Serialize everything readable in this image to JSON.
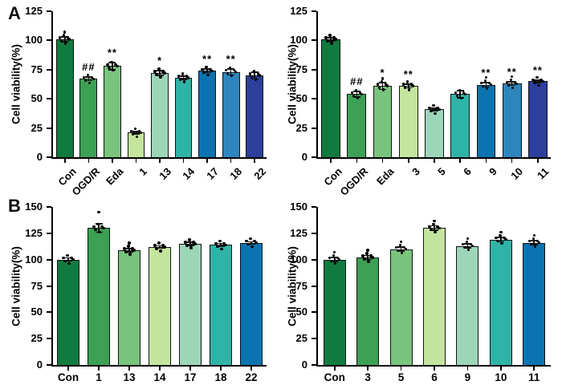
{
  "panels": {
    "a": "A",
    "b": "B"
  },
  "palette": [
    "#117a3e",
    "#3ca055",
    "#79c47d",
    "#c4e59e",
    "#9cd6b9",
    "#2fb3a7",
    "#0b74b0",
    "#2e85bd",
    "#2b3f9b"
  ],
  "axis_color": "#000000",
  "dot_color": "#000000",
  "chart_data": [
    {
      "id": "panel-a-left",
      "type": "bar",
      "title": "",
      "ylabel": "Cell viability(%)",
      "xlabel": "",
      "ylim": [
        0,
        125
      ],
      "yticks": [
        0,
        25,
        50,
        75,
        100,
        125
      ],
      "grid": false,
      "legend": "none",
      "x_labels_rotated": true,
      "bars": [
        {
          "label": "Con",
          "value": 101,
          "err": 2,
          "sig": "",
          "color": 0,
          "n": 7
        },
        {
          "label": "OGD/R",
          "value": 67,
          "err": 1.5,
          "sig": "##",
          "color": 1,
          "n": 6
        },
        {
          "label": "Eda",
          "value": 78,
          "err": 3,
          "sig": "**",
          "color": 2,
          "n": 6
        },
        {
          "label": "1",
          "value": 21,
          "err": 1,
          "sig": "",
          "color": 3,
          "n": 6
        },
        {
          "label": "13",
          "value": 72,
          "err": 2,
          "sig": "*",
          "color": 4,
          "n": 6
        },
        {
          "label": "14",
          "value": 68,
          "err": 1.5,
          "sig": "",
          "color": 5,
          "n": 6
        },
        {
          "label": "17",
          "value": 74,
          "err": 1.5,
          "sig": "**",
          "color": 6,
          "n": 6
        },
        {
          "label": "18",
          "value": 73,
          "err": 2.5,
          "sig": "**",
          "color": 7,
          "n": 6
        },
        {
          "label": "22",
          "value": 70,
          "err": 3,
          "sig": "",
          "color": 8,
          "n": 6
        }
      ]
    },
    {
      "id": "panel-a-right",
      "type": "bar",
      "title": "",
      "ylabel": "Cell viability(%)",
      "xlabel": "",
      "ylim": [
        0,
        125
      ],
      "yticks": [
        0,
        25,
        50,
        75,
        100,
        125
      ],
      "grid": false,
      "legend": "none",
      "x_labels_rotated": true,
      "bars": [
        {
          "label": "Con",
          "value": 101,
          "err": 1.5,
          "sig": "",
          "color": 0,
          "n": 6
        },
        {
          "label": "OGD/R",
          "value": 54,
          "err": 2.5,
          "sig": "##",
          "color": 1,
          "n": 6
        },
        {
          "label": "Eda",
          "value": 61,
          "err": 3,
          "sig": "*",
          "color": 2,
          "n": 7
        },
        {
          "label": "3",
          "value": 61,
          "err": 1.5,
          "sig": "**",
          "color": 3,
          "n": 6
        },
        {
          "label": "5",
          "value": 41,
          "err": 1,
          "sig": "",
          "color": 4,
          "n": 6
        },
        {
          "label": "6",
          "value": 54,
          "err": 3,
          "sig": "",
          "color": 5,
          "n": 6
        },
        {
          "label": "9",
          "value": 62,
          "err": 2,
          "sig": "**",
          "color": 6,
          "n": 7
        },
        {
          "label": "10",
          "value": 63,
          "err": 1.5,
          "sig": "**",
          "color": 7,
          "n": 7
        },
        {
          "label": "11",
          "value": 65,
          "err": 1,
          "sig": "**",
          "color": 8,
          "n": 6
        }
      ]
    },
    {
      "id": "panel-b-left",
      "type": "bar",
      "title": "",
      "ylabel": "Cell viability(%)",
      "xlabel": "",
      "ylim": [
        0,
        150
      ],
      "yticks": [
        0,
        25,
        50,
        75,
        100,
        125,
        150
      ],
      "grid": false,
      "legend": "none",
      "x_labels_rotated": false,
      "bars": [
        {
          "label": "Con",
          "value": 100,
          "err": 1.5,
          "sig": "",
          "color": 0,
          "n": 6
        },
        {
          "label": "1",
          "value": 130,
          "err": 4,
          "sig": "",
          "color": 1,
          "n": 6,
          "high_point": 145
        },
        {
          "label": "13",
          "value": 109,
          "err": 1.5,
          "sig": "",
          "color": 2,
          "n": 7
        },
        {
          "label": "14",
          "value": 112,
          "err": 1,
          "sig": "",
          "color": 3,
          "n": 6
        },
        {
          "label": "17",
          "value": 115,
          "err": 1.5,
          "sig": "",
          "color": 4,
          "n": 6
        },
        {
          "label": "18",
          "value": 114,
          "err": 1.5,
          "sig": "",
          "color": 5,
          "n": 6
        },
        {
          "label": "22",
          "value": 116,
          "err": 1,
          "sig": "",
          "color": 6,
          "n": 6
        }
      ]
    },
    {
      "id": "panel-b-right",
      "type": "bar",
      "title": "",
      "ylabel": "Cell viability(%)",
      "xlabel": "",
      "ylim": [
        0,
        150
      ],
      "yticks": [
        0,
        25,
        50,
        75,
        100,
        125,
        150
      ],
      "grid": false,
      "legend": "none",
      "x_labels_rotated": false,
      "bars": [
        {
          "label": "Con",
          "value": 100,
          "err": 2,
          "sig": "",
          "color": 0,
          "n": 7
        },
        {
          "label": "3",
          "value": 102,
          "err": 2,
          "sig": "",
          "color": 1,
          "n": 7
        },
        {
          "label": "5",
          "value": 110,
          "err": 2,
          "sig": "",
          "color": 2,
          "n": 7
        },
        {
          "label": "6",
          "value": 130,
          "err": 2,
          "sig": "",
          "color": 3,
          "n": 7
        },
        {
          "label": "9",
          "value": 113,
          "err": 2,
          "sig": "",
          "color": 4,
          "n": 7
        },
        {
          "label": "10",
          "value": 119,
          "err": 2,
          "sig": "",
          "color": 5,
          "n": 7
        },
        {
          "label": "11",
          "value": 116,
          "err": 2,
          "sig": "",
          "color": 6,
          "n": 7
        }
      ]
    }
  ]
}
